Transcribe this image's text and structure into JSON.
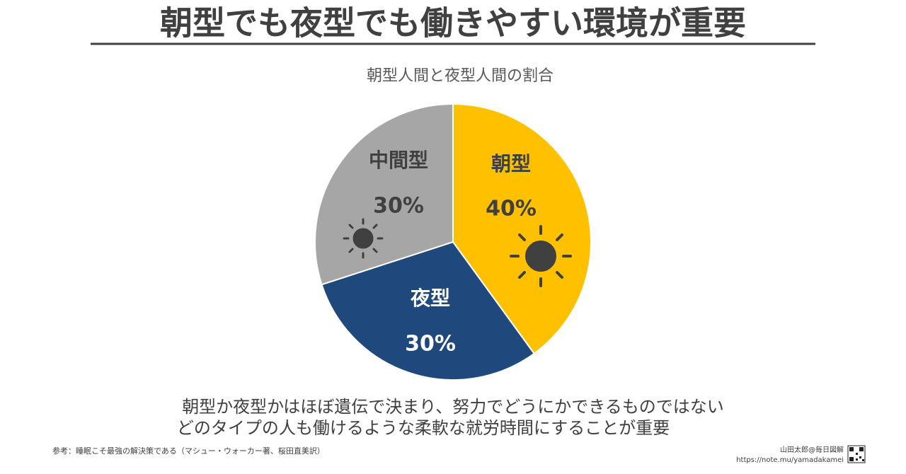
{
  "header": {
    "title": "朝型でも夜型でも働きやすい環境が重要"
  },
  "chart_data": {
    "type": "pie",
    "title": "朝型人間と夜型人間の割合",
    "categories": [
      "朝型",
      "夜型",
      "中間型"
    ],
    "values": [
      40,
      30,
      30
    ],
    "value_labels": [
      "40%",
      "30%",
      "30%"
    ],
    "colors": [
      "#ffc000",
      "#1f497d",
      "#a6a6a6"
    ]
  },
  "notes": [
    "朝型か夜型かはほぼ遺伝で決まり、努力でどうにかできるものではない",
    "どのタイプの人も働けるような柔軟な就労時間にすることが重要"
  ],
  "reference": "参考：睡眠こそ最強の解決策である（マシュー・ウォーカー著、桜田直美訳）",
  "credit": {
    "author": "山田太郎@毎日図解",
    "url": "https://note.mu/yamadakamei"
  }
}
